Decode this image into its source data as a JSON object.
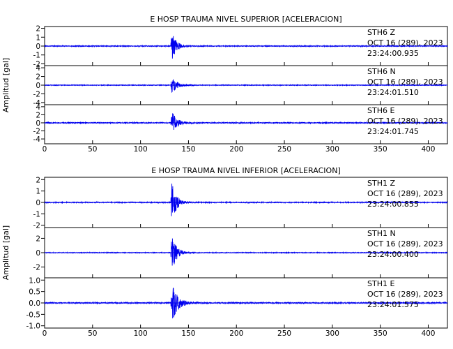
{
  "trace_color": "#0000ee",
  "axis_color": "#000000",
  "chart_data": [
    {
      "type": "line",
      "title": "E HOSP TRAUMA NIVEL SUPERIOR [ACELERACION]",
      "ylabel": "Amplitud [gal]",
      "xlim": [
        0,
        420
      ],
      "xticks": [
        "0",
        "50",
        "100",
        "150",
        "200",
        "250",
        "300",
        "350",
        "400"
      ],
      "grid": false,
      "series": [
        {
          "name": "STH6 Z",
          "station": "STH6",
          "component": "Z",
          "date": "OCT 16 (289), 2023",
          "time": "23:24:00.935",
          "ylim": [
            -2.2,
            2.2
          ],
          "yticks": [
            "2",
            "1",
            "0",
            "-1",
            "-2"
          ],
          "onset_s": 131.5,
          "peak_gal": 2.1,
          "noise_gal": 0.05,
          "coda_s": 14
        },
        {
          "name": "STH6 N",
          "station": "STH6",
          "component": "N",
          "date": "OCT 16 (289), 2023",
          "time": "23:24:01.510",
          "ylim": [
            -4.5,
            4.5
          ],
          "yticks": [
            "4",
            "2",
            "0",
            "-2",
            "-4"
          ],
          "onset_s": 131.5,
          "peak_gal": 2.4,
          "noise_gal": 0.08,
          "coda_s": 16
        },
        {
          "name": "STH6 E",
          "station": "STH6",
          "component": "E",
          "date": "OCT 16 (289), 2023",
          "time": "23:24:01.745",
          "ylim": [
            -5.2,
            4.5
          ],
          "yticks": [
            "4",
            "2",
            "0",
            "-2",
            "-4"
          ],
          "onset_s": 131.5,
          "peak_gal": 3.5,
          "noise_gal": 0.12,
          "coda_s": 16
        }
      ]
    },
    {
      "type": "line",
      "title": "E HOSP TRAUMA NIVEL INFERIOR [ACELERACION]",
      "ylabel": "Amplitud [gal]",
      "xlim": [
        0,
        420
      ],
      "xticks": [
        "0",
        "50",
        "100",
        "150",
        "200",
        "250",
        "300",
        "350",
        "400"
      ],
      "grid": false,
      "series": [
        {
          "name": "STH1 Z",
          "station": "STH1",
          "component": "Z",
          "date": "OCT 16 (289), 2023",
          "time": "23:24:00.855",
          "ylim": [
            -2.2,
            2.2
          ],
          "yticks": [
            "2",
            "1",
            "0",
            "-1",
            "-2"
          ],
          "onset_s": 131.5,
          "peak_gal": 2.2,
          "noise_gal": 0.04,
          "coda_s": 14
        },
        {
          "name": "STH1 N",
          "station": "STH1",
          "component": "N",
          "date": "OCT 16 (289), 2023",
          "time": "23:24:00.400",
          "ylim": [
            -3.5,
            3.5
          ],
          "yticks": [
            "2",
            "0",
            "-2"
          ],
          "onset_s": 131.5,
          "peak_gal": 3.4,
          "noise_gal": 0.05,
          "coda_s": 14
        },
        {
          "name": "STH1 E",
          "station": "STH1",
          "component": "E",
          "date": "OCT 16 (289), 2023",
          "time": "23:24:01.575",
          "ylim": [
            -1.1,
            1.1
          ],
          "yticks": [
            "1.0",
            "0.5",
            "0.0",
            "-0.5",
            "-1.0"
          ],
          "onset_s": 131.5,
          "peak_gal": 1.05,
          "noise_gal": 0.025,
          "coda_s": 18
        }
      ]
    }
  ]
}
